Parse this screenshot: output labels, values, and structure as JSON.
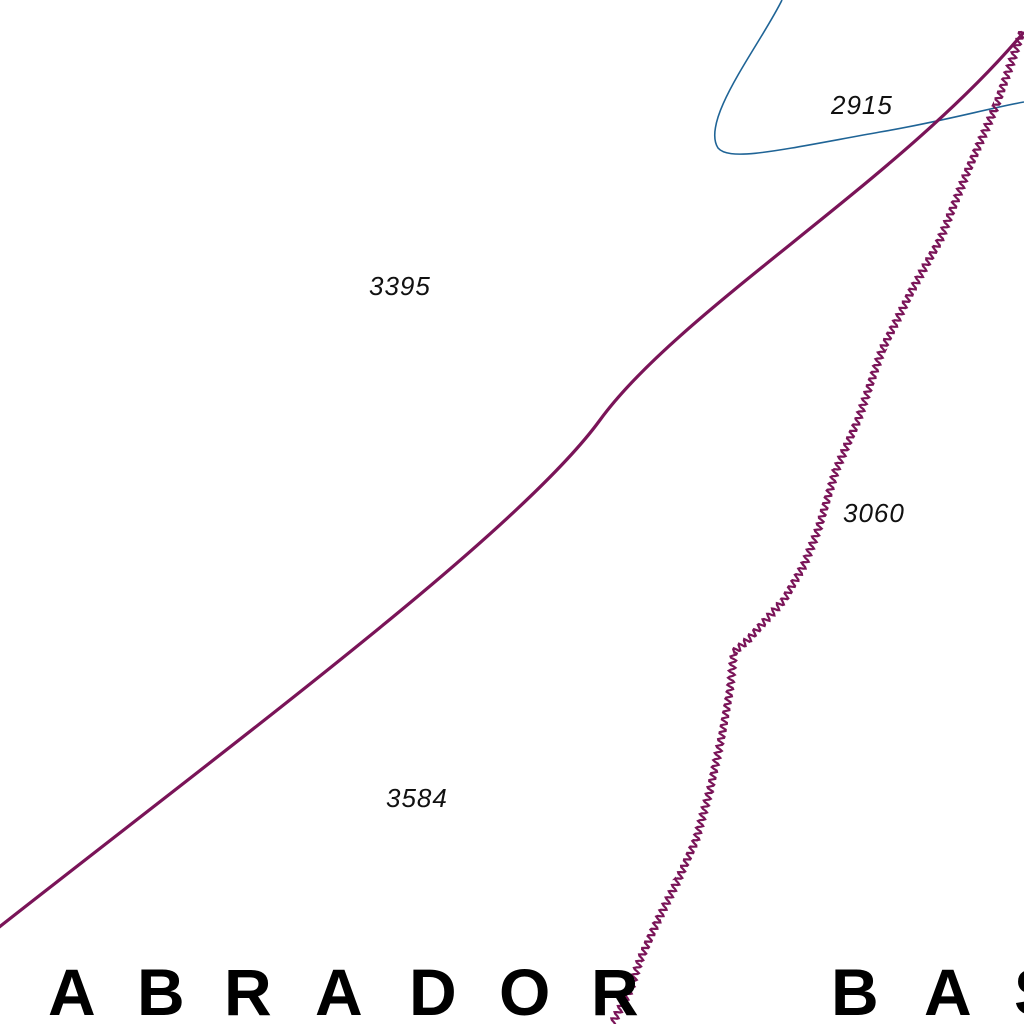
{
  "map": {
    "colors": {
      "background": "#ffffff",
      "boundary": "#7a1458",
      "contour": "#1f6496",
      "text": "#111111"
    },
    "soundings": {
      "s1": "2915",
      "s2": "3395",
      "s3": "3060",
      "s4": "3584"
    },
    "region_label": {
      "word1_letters": [
        "A",
        "B",
        "R",
        "A",
        "D",
        "O",
        "R"
      ],
      "word2_letters": [
        "B",
        "A",
        "S"
      ]
    },
    "lines": [
      {
        "name": "maritime-limit-line",
        "style": "solid",
        "color": "boundary"
      },
      {
        "name": "wavy-boundary-line",
        "style": "wavy",
        "color": "boundary"
      },
      {
        "name": "depth-contour",
        "style": "thin",
        "color": "contour"
      }
    ]
  }
}
